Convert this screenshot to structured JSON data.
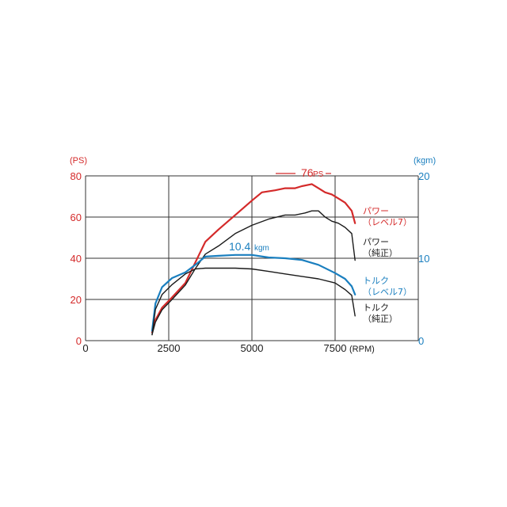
{
  "colors": {
    "red": "#d42a2a",
    "blue": "#1a7fbf",
    "black": "#1a1a1a",
    "grid": "#333333"
  },
  "chart_data": {
    "type": "line",
    "x_unit": "(RPM)",
    "left_unit": "(PS)",
    "right_unit": "(kgm)",
    "xlim": [
      0,
      10000
    ],
    "ylim_left": [
      0,
      80
    ],
    "ylim_right": [
      0,
      20
    ],
    "x_ticks": [
      0,
      2500,
      5000,
      7500
    ],
    "left_ticks": [
      0,
      20,
      40,
      60,
      80
    ],
    "right_ticks": [
      0,
      10,
      20
    ],
    "grid": true,
    "annotations": {
      "peak_power": "76",
      "peak_power_unit": "PS",
      "peak_torque": "10.4",
      "peak_torque_unit": "kgm"
    },
    "series": [
      {
        "name": "パワー（レベル7）",
        "line1": "パワー",
        "line2": "（レベル7）",
        "axis": "left",
        "color": "red",
        "x": [
          2000,
          2100,
          2300,
          2600,
          3000,
          3300,
          3600,
          4000,
          4500,
          5000,
          5300,
          5700,
          6000,
          6300,
          6500,
          6800,
          7000,
          7200,
          7400,
          7600,
          7800,
          8000,
          8100
        ],
        "y": [
          4,
          10,
          16,
          21,
          28,
          38,
          48,
          54,
          61,
          68,
          72,
          73,
          74,
          74,
          75,
          76,
          74,
          72,
          71,
          69,
          67,
          63,
          57
        ]
      },
      {
        "name": "パワー（純正）",
        "line1": "パワー",
        "line2": "（純正）",
        "axis": "left",
        "color": "black",
        "x": [
          2000,
          2100,
          2300,
          2600,
          3000,
          3300,
          3600,
          4000,
          4500,
          5000,
          5500,
          6000,
          6300,
          6600,
          6800,
          7000,
          7200,
          7400,
          7600,
          7800,
          8000,
          8100
        ],
        "y": [
          3,
          9,
          15,
          20,
          27,
          35,
          42,
          46,
          52,
          56,
          59,
          61,
          61,
          62,
          63,
          63,
          60,
          58,
          57,
          55,
          52,
          39
        ]
      },
      {
        "name": "トルク（レベル7）",
        "line1": "トルク",
        "line2": "（レベル7）",
        "axis": "right",
        "color": "blue",
        "x": [
          2000,
          2100,
          2300,
          2600,
          3000,
          3300,
          3600,
          4000,
          4500,
          5000,
          5500,
          6000,
          6500,
          7000,
          7500,
          7800,
          8000,
          8100
        ],
        "y": [
          1.2,
          4.5,
          6.5,
          7.6,
          8.3,
          9.2,
          10.2,
          10.3,
          10.4,
          10.4,
          10.1,
          10.0,
          9.8,
          9.2,
          8.2,
          7.5,
          6.6,
          5.6
        ]
      },
      {
        "name": "トルク（純正）",
        "line1": "トルク",
        "line2": "（純正）",
        "axis": "right",
        "color": "black",
        "x": [
          2000,
          2100,
          2300,
          2600,
          3000,
          3300,
          3600,
          4000,
          4500,
          5000,
          5500,
          6000,
          6500,
          7000,
          7500,
          7800,
          8000,
          8100
        ],
        "y": [
          0.7,
          3.8,
          5.6,
          6.8,
          8.1,
          8.7,
          8.8,
          8.8,
          8.8,
          8.7,
          8.4,
          8.1,
          7.8,
          7.5,
          7.0,
          6.2,
          5.5,
          3.0
        ]
      }
    ]
  }
}
